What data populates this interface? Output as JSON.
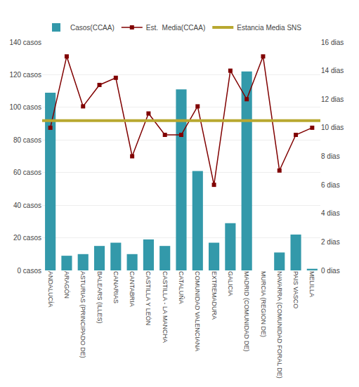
{
  "chart_data": {
    "type": "bar",
    "categories": [
      "ANDALUCÍA",
      "ARAGÓN",
      "ASTURIAS (PRINCIPADO DE)",
      "BALEARS (ILLES)",
      "CANARIAS",
      "CANTABRIA",
      "CASTILLA Y LEÓN",
      "CASTILLA - LA MANCHA",
      "CATALUÑA",
      "COMUNIDAD VALENCIANA",
      "EXTREMADURA",
      "GALICIA",
      "MADRID (COMUNIDAD DE)",
      "MURCIA (REGION DE)",
      "NAVARRA (COMUNIDAD FORAL DE)",
      "PAIS VASCO",
      "MELILLA"
    ],
    "series": [
      {
        "name": "Casos(CCAA)",
        "type": "bar",
        "color": "#3399aa",
        "values": [
          109,
          9,
          10,
          15,
          17,
          10,
          19,
          15,
          111,
          61,
          17,
          29,
          122,
          0,
          11,
          22,
          1
        ]
      },
      {
        "name": "Est.  Media(CCAA)",
        "type": "line",
        "axis": "y2",
        "color": "#800000",
        "marker": "square",
        "values": [
          10,
          15,
          11.5,
          13,
          13.5,
          8,
          11,
          9.5,
          9.5,
          11.5,
          6,
          14,
          12,
          15,
          7,
          9.5,
          10
        ]
      },
      {
        "name": "Estancia Media SNS",
        "type": "hline",
        "axis": "y2",
        "color": "#b8a830",
        "value": 10.5
      }
    ],
    "ylim": [
      0,
      140
    ],
    "yticks": [
      {
        "value": 0,
        "label": "0 casos"
      },
      {
        "value": 20,
        "label": "20 casos"
      },
      {
        "value": 40,
        "label": "40 casos"
      },
      {
        "value": 60,
        "label": "60 casos"
      },
      {
        "value": 80,
        "label": "80 casos"
      },
      {
        "value": 100,
        "label": "100 casos"
      },
      {
        "value": 120,
        "label": "120 casos"
      },
      {
        "value": 140,
        "label": "140 casos"
      }
    ],
    "y2lim": [
      0,
      16
    ],
    "y2ticks": [
      {
        "value": 0,
        "label": "0 dias"
      },
      {
        "value": 2,
        "label": "2 dias"
      },
      {
        "value": 4,
        "label": "4 dias"
      },
      {
        "value": 6,
        "label": "6 dias"
      },
      {
        "value": 8,
        "label": "8 dias"
      },
      {
        "value": 10,
        "label": "10 dias"
      },
      {
        "value": 12,
        "label": "12 dias"
      },
      {
        "value": 14,
        "label": "14 dias"
      },
      {
        "value": 16,
        "label": "16 dias"
      }
    ],
    "grid": true,
    "legend": "top"
  }
}
